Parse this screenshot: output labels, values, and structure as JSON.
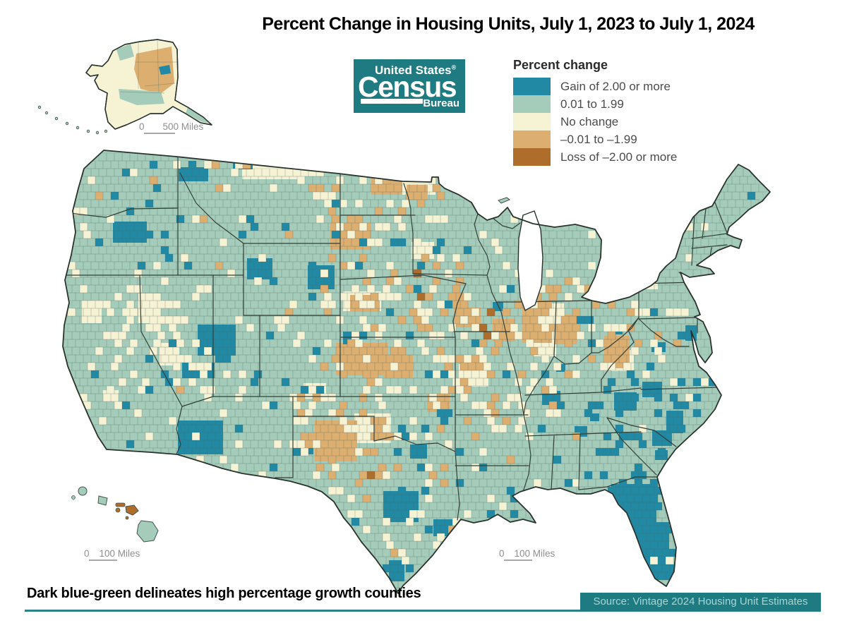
{
  "title": "Percent Change in Housing Units, July 1, 2023 to July 1, 2024",
  "logo": {
    "line1": "United States",
    "registered": "®",
    "line2": "Census",
    "line3": "Bureau",
    "background": "#1E7B82"
  },
  "legend": {
    "title": "Percent change",
    "items": [
      {
        "label": "Gain of 2.00 or more",
        "color": "#2189A3"
      },
      {
        "label": "0.01 to 1.99",
        "color": "#A5CCBA"
      },
      {
        "label": "No change",
        "color": "#F6F3D5"
      },
      {
        "label": "–0.01 to –1.99",
        "color": "#DCAF70"
      },
      {
        "label": "Loss of –2.00 or more",
        "color": "#AF6D2B"
      }
    ]
  },
  "map": {
    "base_color": "#A5CCBA",
    "gain_color": "#2189A3",
    "no_change_color": "#F6F3D5",
    "loss_color": "#DCAF70",
    "big_loss_color": "#AF6D2B",
    "state_border_color": "#333F39",
    "outline_color": "#2A342F",
    "county_line_color": "rgba(80,110,100,0.32)",
    "water_color": "#ffffff"
  },
  "scales": {
    "alaska": {
      "zero": "0",
      "distance": "500 Miles"
    },
    "hawaii": {
      "zero": "0",
      "distance": "100 Miles"
    },
    "conus": {
      "zero": "0",
      "distance": "100 Miles"
    }
  },
  "note": "Dark blue-green delineates high percentage growth counties",
  "source": "Source: Vintage 2024 Housing Unit Estimates",
  "accent_teal": "#1E7B82",
  "rule_color": "#2A8186"
}
